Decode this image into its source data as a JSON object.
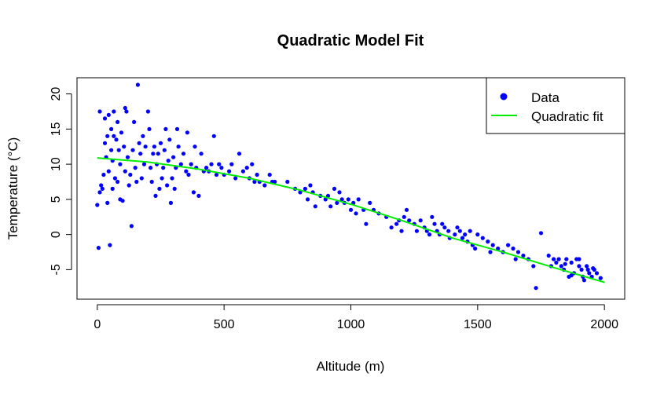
{
  "chart_data": {
    "type": "scatter",
    "title": "Quadratic Model Fit",
    "xlabel": "Altitude (m)",
    "ylabel": "Temperature (°C)",
    "xlim": [
      -80,
      2080
    ],
    "ylim": [
      -9.2,
      22.3
    ],
    "x_ticks": [
      0,
      500,
      1000,
      1500,
      2000
    ],
    "y_ticks": [
      -5,
      0,
      5,
      10,
      15,
      20
    ],
    "grid": false,
    "legend": {
      "position": "top-right",
      "entries": [
        {
          "label": "Data",
          "type": "point",
          "color": "#0000ff"
        },
        {
          "label": "Quadratic fit",
          "type": "line",
          "color": "#00ee00"
        }
      ]
    },
    "series": [
      {
        "name": "Data",
        "color": "#0000ff",
        "points": [
          [
            0,
            4.2
          ],
          [
            5,
            -1.9
          ],
          [
            10,
            6.0
          ],
          [
            10,
            17.5
          ],
          [
            15,
            7.0
          ],
          [
            20,
            6.5
          ],
          [
            25,
            8.5
          ],
          [
            30,
            13.0
          ],
          [
            30,
            16.5
          ],
          [
            35,
            11.0
          ],
          [
            40,
            14.0
          ],
          [
            40,
            4.5
          ],
          [
            45,
            9.0
          ],
          [
            45,
            17.0
          ],
          [
            50,
            -1.5
          ],
          [
            55,
            12.0
          ],
          [
            55,
            15.0
          ],
          [
            60,
            10.5
          ],
          [
            60,
            6.5
          ],
          [
            65,
            14.0
          ],
          [
            65,
            17.5
          ],
          [
            70,
            8.0
          ],
          [
            75,
            13.5
          ],
          [
            80,
            7.5
          ],
          [
            80,
            16.0
          ],
          [
            85,
            12.0
          ],
          [
            90,
            10.0
          ],
          [
            90,
            5.0
          ],
          [
            95,
            14.5
          ],
          [
            100,
            4.8
          ],
          [
            105,
            12.5
          ],
          [
            110,
            9.0
          ],
          [
            110,
            18.0
          ],
          [
            115,
            17.5
          ],
          [
            120,
            11.0
          ],
          [
            125,
            7.0
          ],
          [
            130,
            8.5
          ],
          [
            135,
            1.2
          ],
          [
            140,
            12.0
          ],
          [
            145,
            16.0
          ],
          [
            150,
            9.5
          ],
          [
            155,
            7.5
          ],
          [
            160,
            21.3
          ],
          [
            165,
            13.0
          ],
          [
            170,
            11.5
          ],
          [
            175,
            8.0
          ],
          [
            180,
            14.0
          ],
          [
            185,
            10.0
          ],
          [
            190,
            12.5
          ],
          [
            200,
            17.5
          ],
          [
            205,
            15.0
          ],
          [
            210,
            9.5
          ],
          [
            215,
            7.5
          ],
          [
            220,
            11.5
          ],
          [
            225,
            12.5
          ],
          [
            230,
            5.5
          ],
          [
            235,
            10.0
          ],
          [
            240,
            11.5
          ],
          [
            245,
            6.5
          ],
          [
            250,
            13.0
          ],
          [
            255,
            8.0
          ],
          [
            260,
            9.5
          ],
          [
            265,
            12.0
          ],
          [
            270,
            15.0
          ],
          [
            275,
            7.0
          ],
          [
            280,
            10.5
          ],
          [
            285,
            13.5
          ],
          [
            290,
            4.5
          ],
          [
            295,
            8.0
          ],
          [
            300,
            11.0
          ],
          [
            305,
            6.5
          ],
          [
            310,
            9.5
          ],
          [
            315,
            15.0
          ],
          [
            320,
            12.5
          ],
          [
            330,
            10.0
          ],
          [
            340,
            11.5
          ],
          [
            350,
            9.0
          ],
          [
            355,
            14.5
          ],
          [
            360,
            8.5
          ],
          [
            370,
            10.0
          ],
          [
            380,
            6.0
          ],
          [
            385,
            12.5
          ],
          [
            390,
            9.5
          ],
          [
            400,
            5.5
          ],
          [
            410,
            11.5
          ],
          [
            420,
            9.0
          ],
          [
            430,
            9.5
          ],
          [
            440,
            9.0
          ],
          [
            450,
            10.0
          ],
          [
            460,
            14.0
          ],
          [
            470,
            8.5
          ],
          [
            480,
            10.0
          ],
          [
            490,
            9.5
          ],
          [
            500,
            8.5
          ],
          [
            520,
            9.0
          ],
          [
            530,
            10.0
          ],
          [
            545,
            8.0
          ],
          [
            560,
            11.5
          ],
          [
            575,
            9.0
          ],
          [
            590,
            9.5
          ],
          [
            600,
            8.0
          ],
          [
            610,
            10.0
          ],
          [
            620,
            7.5
          ],
          [
            630,
            8.5
          ],
          [
            640,
            7.5
          ],
          [
            660,
            7.0
          ],
          [
            680,
            8.5
          ],
          [
            690,
            7.5
          ],
          [
            700,
            7.5
          ],
          [
            750,
            7.5
          ],
          [
            780,
            6.5
          ],
          [
            800,
            6.0
          ],
          [
            820,
            6.5
          ],
          [
            830,
            5.0
          ],
          [
            840,
            7.0
          ],
          [
            850,
            6.0
          ],
          [
            860,
            4.0
          ],
          [
            880,
            5.5
          ],
          [
            900,
            5.0
          ],
          [
            910,
            5.5
          ],
          [
            920,
            4.0
          ],
          [
            935,
            6.5
          ],
          [
            945,
            4.5
          ],
          [
            955,
            6.0
          ],
          [
            965,
            5.0
          ],
          [
            975,
            4.5
          ],
          [
            990,
            5.0
          ],
          [
            1000,
            3.5
          ],
          [
            1010,
            4.5
          ],
          [
            1020,
            3.0
          ],
          [
            1030,
            5.0
          ],
          [
            1050,
            3.5
          ],
          [
            1060,
            1.5
          ],
          [
            1075,
            4.5
          ],
          [
            1090,
            3.5
          ],
          [
            1110,
            3.0
          ],
          [
            1140,
            2.5
          ],
          [
            1160,
            1.0
          ],
          [
            1180,
            1.5
          ],
          [
            1190,
            2.0
          ],
          [
            1200,
            0.5
          ],
          [
            1210,
            2.5
          ],
          [
            1220,
            3.5
          ],
          [
            1230,
            2.0
          ],
          [
            1250,
            1.5
          ],
          [
            1260,
            0.5
          ],
          [
            1275,
            2.0
          ],
          [
            1290,
            1.0
          ],
          [
            1300,
            0.5
          ],
          [
            1310,
            0.0
          ],
          [
            1320,
            2.5
          ],
          [
            1330,
            1.5
          ],
          [
            1340,
            0.5
          ],
          [
            1350,
            0.0
          ],
          [
            1360,
            1.5
          ],
          [
            1370,
            1.0
          ],
          [
            1385,
            0.5
          ],
          [
            1390,
            -0.5
          ],
          [
            1410,
            0.0
          ],
          [
            1420,
            1.0
          ],
          [
            1430,
            0.5
          ],
          [
            1440,
            -0.5
          ],
          [
            1450,
            0.0
          ],
          [
            1460,
            -1.0
          ],
          [
            1470,
            0.5
          ],
          [
            1480,
            -1.5
          ],
          [
            1490,
            -2.0
          ],
          [
            1500,
            0.0
          ],
          [
            1520,
            -0.5
          ],
          [
            1540,
            -1.0
          ],
          [
            1550,
            -2.5
          ],
          [
            1560,
            -1.5
          ],
          [
            1580,
            -2.0
          ],
          [
            1600,
            -2.5
          ],
          [
            1620,
            -1.5
          ],
          [
            1640,
            -2.0
          ],
          [
            1650,
            -3.5
          ],
          [
            1660,
            -2.5
          ],
          [
            1680,
            -3.0
          ],
          [
            1700,
            -3.5
          ],
          [
            1720,
            -4.5
          ],
          [
            1730,
            -7.6
          ],
          [
            1750,
            0.2
          ],
          [
            1780,
            -3.0
          ],
          [
            1790,
            -4.5
          ],
          [
            1800,
            -3.5
          ],
          [
            1810,
            -4.0
          ],
          [
            1820,
            -3.5
          ],
          [
            1830,
            -4.5
          ],
          [
            1840,
            -5.0
          ],
          [
            1850,
            -3.5
          ],
          [
            1860,
            -6.0
          ],
          [
            1870,
            -4.0
          ],
          [
            1880,
            -5.5
          ],
          [
            1890,
            -3.5
          ],
          [
            1900,
            -4.5
          ],
          [
            1910,
            -5.0
          ],
          [
            1920,
            -6.5
          ],
          [
            1930,
            -4.5
          ],
          [
            1940,
            -5.5
          ],
          [
            1950,
            -6.0
          ],
          [
            1960,
            -5.0
          ],
          [
            1970,
            -5.5
          ],
          [
            1985,
            -6.2
          ],
          [
            1900,
            -3.5
          ],
          [
            1915,
            -6.0
          ],
          [
            1935,
            -5.0
          ],
          [
            1955,
            -4.8
          ],
          [
            1845,
            -4.2
          ],
          [
            1870,
            -5.8
          ]
        ]
      },
      {
        "name": "Quadratic fit",
        "color": "#00ee00",
        "type": "line",
        "points": [
          [
            0,
            10.9
          ],
          [
            200,
            10.3
          ],
          [
            400,
            9.3
          ],
          [
            600,
            8.0
          ],
          [
            800,
            6.3
          ],
          [
            1000,
            4.3
          ],
          [
            1200,
            2.0
          ],
          [
            1400,
            -0.5
          ],
          [
            1600,
            -2.5
          ],
          [
            1800,
            -4.7
          ],
          [
            2000,
            -6.8
          ]
        ]
      }
    ]
  }
}
